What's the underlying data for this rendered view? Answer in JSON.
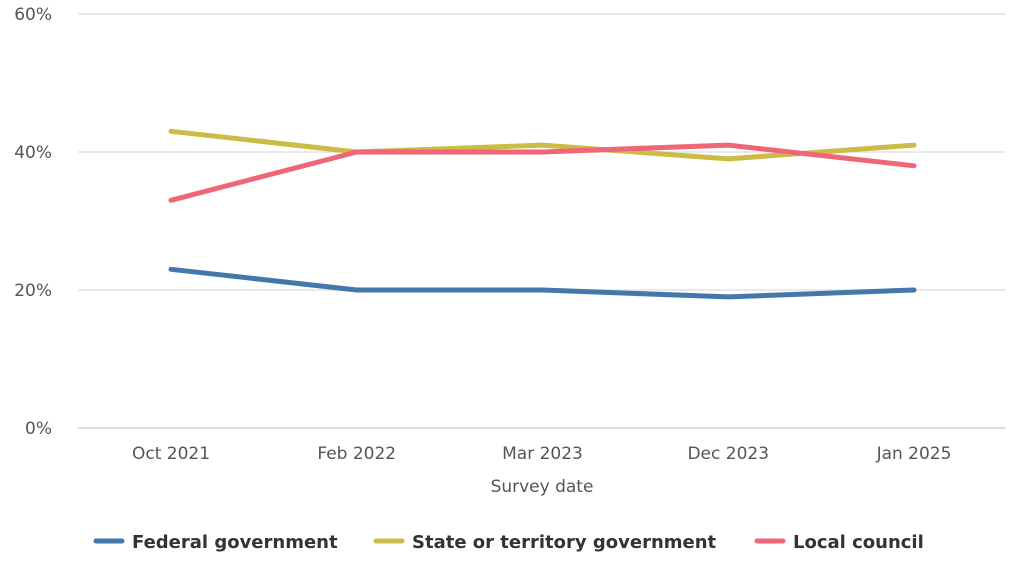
{
  "chart_data": {
    "type": "line",
    "title": "",
    "xlabel": "Survey date",
    "ylabel": "",
    "categories": [
      "Oct 2021",
      "Feb 2022",
      "Mar 2023",
      "Dec 2023",
      "Jan 2025"
    ],
    "ylim": [
      0,
      60
    ],
    "yticks": [
      0,
      20,
      40,
      60
    ],
    "ytick_labels": [
      "0%",
      "20%",
      "40%",
      "60%"
    ],
    "grid": true,
    "legend_position": "bottom",
    "series": [
      {
        "name": "Federal government",
        "color": "#4477AA",
        "values": [
          23,
          20,
          20,
          19,
          20
        ]
      },
      {
        "name": "State or territory government",
        "color": "#CCBB44",
        "values": [
          43,
          40,
          41,
          39,
          41
        ]
      },
      {
        "name": "Local council",
        "color": "#EE6677",
        "values": [
          33,
          40,
          40,
          41,
          38
        ]
      }
    ]
  }
}
